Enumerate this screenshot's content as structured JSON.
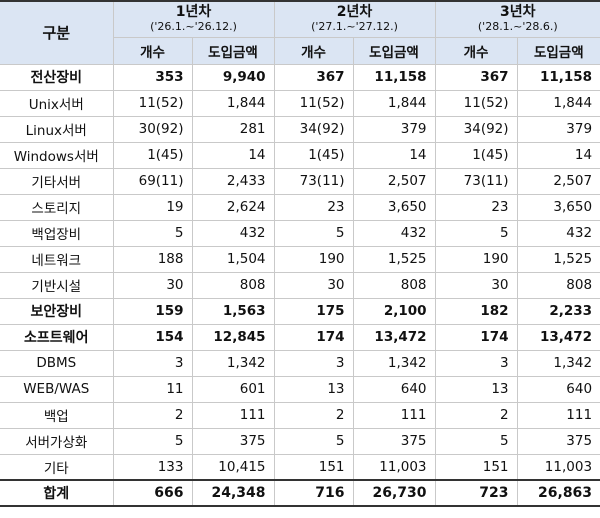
{
  "header": {
    "corner": "구분",
    "years": [
      {
        "label": "1년차",
        "period": "('26.1.~'26.12.)"
      },
      {
        "label": "2년차",
        "period": "('27.1.~'27.12.)"
      },
      {
        "label": "3년차",
        "period": "('28.1.~'28.6.)"
      }
    ],
    "sub": {
      "count": "개수",
      "amount": "도입금액"
    }
  },
  "rows": [
    {
      "type": "cat",
      "label": "전산장비",
      "vals": [
        "353",
        "9,940",
        "367",
        "11,158",
        "367",
        "11,158"
      ]
    },
    {
      "type": "sub",
      "label": "Unix서버",
      "vals": [
        "11(52)",
        "1,844",
        "11(52)",
        "1,844",
        "11(52)",
        "1,844"
      ]
    },
    {
      "type": "sub",
      "label": "Linux서버",
      "vals": [
        "30(92)",
        "281",
        "34(92)",
        "379",
        "34(92)",
        "379"
      ]
    },
    {
      "type": "sub",
      "label": "Windows서버",
      "vals": [
        "1(45)",
        "14",
        "1(45)",
        "14",
        "1(45)",
        "14"
      ]
    },
    {
      "type": "sub",
      "label": "기타서버",
      "vals": [
        "69(11)",
        "2,433",
        "73(11)",
        "2,507",
        "73(11)",
        "2,507"
      ]
    },
    {
      "type": "sub",
      "label": "스토리지",
      "vals": [
        "19",
        "2,624",
        "23",
        "3,650",
        "23",
        "3,650"
      ]
    },
    {
      "type": "sub",
      "label": "백업장비",
      "vals": [
        "5",
        "432",
        "5",
        "432",
        "5",
        "432"
      ]
    },
    {
      "type": "sub",
      "label": "네트워크",
      "vals": [
        "188",
        "1,504",
        "190",
        "1,525",
        "190",
        "1,525"
      ]
    },
    {
      "type": "sub",
      "label": "기반시설",
      "vals": [
        "30",
        "808",
        "30",
        "808",
        "30",
        "808"
      ]
    },
    {
      "type": "cat",
      "label": "보안장비",
      "vals": [
        "159",
        "1,563",
        "175",
        "2,100",
        "182",
        "2,233"
      ]
    },
    {
      "type": "cat",
      "label": "소프트웨어",
      "vals": [
        "154",
        "12,845",
        "174",
        "13,472",
        "174",
        "13,472"
      ]
    },
    {
      "type": "sub",
      "label": "DBMS",
      "vals": [
        "3",
        "1,342",
        "3",
        "1,342",
        "3",
        "1,342"
      ]
    },
    {
      "type": "sub",
      "label": "WEB/WAS",
      "vals": [
        "11",
        "601",
        "13",
        "640",
        "13",
        "640"
      ]
    },
    {
      "type": "sub",
      "label": "백업",
      "vals": [
        "2",
        "111",
        "2",
        "111",
        "2",
        "111"
      ]
    },
    {
      "type": "sub",
      "label": "서버가상화",
      "vals": [
        "5",
        "375",
        "5",
        "375",
        "5",
        "375"
      ]
    },
    {
      "type": "sub",
      "label": "기타",
      "vals": [
        "133",
        "10,415",
        "151",
        "11,003",
        "151",
        "11,003"
      ]
    },
    {
      "type": "total",
      "label": "합계",
      "vals": [
        "666",
        "24,348",
        "716",
        "26,730",
        "723",
        "26,863"
      ]
    }
  ]
}
